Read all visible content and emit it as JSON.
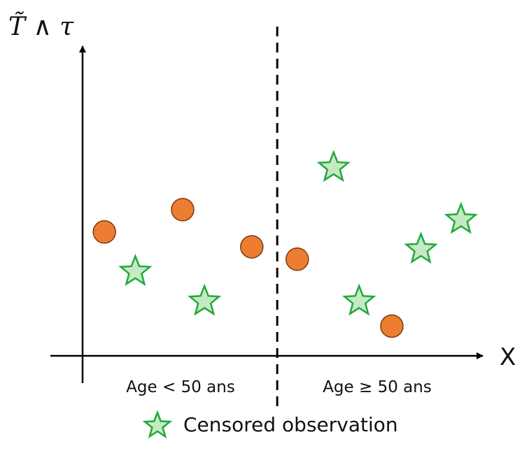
{
  "chart_data": {
    "type": "scatter",
    "ylabel": "T̃ ∧ τ",
    "xlabel": "X",
    "regions": [
      {
        "label": "Age < 50 ans"
      },
      {
        "label": "Age ≥ 50 ans"
      }
    ],
    "legend": {
      "label": "Censored observation",
      "placement": "bottom-center"
    },
    "grid": false,
    "colors": {
      "event": "#ED7D31",
      "event_stroke": "#7A3A0E",
      "censored_fill": "#C6E9C3",
      "censored_stroke": "#22A93B",
      "axis": "#000000"
    },
    "series": [
      {
        "marker": "circle",
        "points": [
          {
            "x": 1.2,
            "y": 5.0
          },
          {
            "x": 5.5,
            "y": 5.9
          },
          {
            "x": 9.3,
            "y": 4.4
          },
          {
            "x": 11.8,
            "y": 3.9
          },
          {
            "x": 17.0,
            "y": 1.2
          }
        ]
      },
      {
        "name": "Censored observation",
        "marker": "star",
        "points": [
          {
            "x": 2.9,
            "y": 3.4
          },
          {
            "x": 6.7,
            "y": 2.2
          },
          {
            "x": 13.8,
            "y": 7.6
          },
          {
            "x": 15.2,
            "y": 2.2
          },
          {
            "x": 18.6,
            "y": 4.3
          },
          {
            "x": 20.8,
            "y": 5.5
          }
        ]
      }
    ],
    "xlim": [
      0,
      22
    ],
    "ylim": [
      0,
      12.5
    ],
    "divider_x": 10.7
  }
}
